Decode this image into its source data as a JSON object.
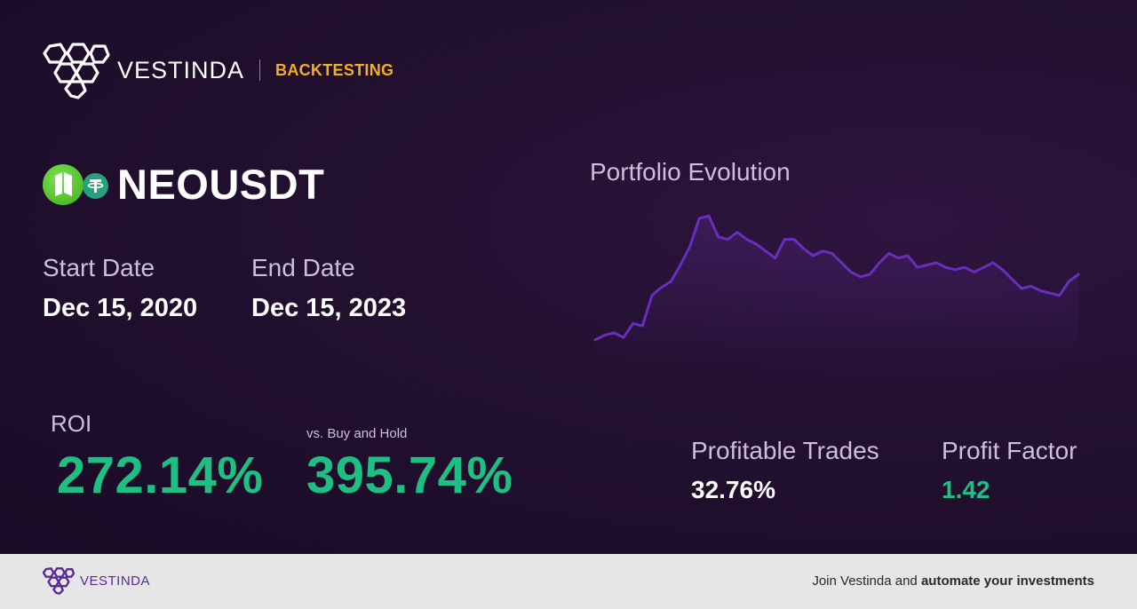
{
  "brand": {
    "name": "VESTINDA",
    "tag": "BACKTESTING",
    "tag_color": "#f2b01e"
  },
  "pair": {
    "name": "NEOUSDT",
    "base_icon": "neo-coin-icon",
    "quote_icon": "tether-coin-icon"
  },
  "dates": {
    "start_label": "Start Date",
    "start_value": "Dec 15, 2020",
    "end_label": "End Date",
    "end_value": "Dec 15, 2023"
  },
  "roi": {
    "label": "ROI",
    "value": "272.14%"
  },
  "buy_hold": {
    "label": "vs. Buy and Hold",
    "value": "395.74%"
  },
  "profitable_trades": {
    "label": "Profitable Trades",
    "value": "32.76%"
  },
  "profit_factor": {
    "label": "Profit Factor",
    "value": "1.42"
  },
  "colors": {
    "positive": "#1fbf84",
    "line": "#6a2dbd",
    "background": "#22102f"
  },
  "chart_data": {
    "type": "line",
    "title": "Portfolio Evolution",
    "grid": false,
    "series": [
      {
        "values": [
          10,
          14,
          16,
          12,
          24,
          22,
          48,
          55,
          60,
          74,
          90,
          114,
          116,
          98,
          96,
          102,
          96,
          92,
          86,
          80,
          96,
          96,
          88,
          82,
          86,
          84,
          76,
          68,
          64,
          66,
          76,
          84,
          80,
          82,
          72,
          74,
          76,
          72,
          70,
          72,
          68,
          72,
          76,
          70,
          62,
          54,
          56,
          52,
          50,
          48,
          60,
          66
        ]
      }
    ]
  },
  "footer": {
    "brand": "VESTINDA",
    "cta_prefix": "Join Vestinda and ",
    "cta_bold": "automate your investments"
  }
}
